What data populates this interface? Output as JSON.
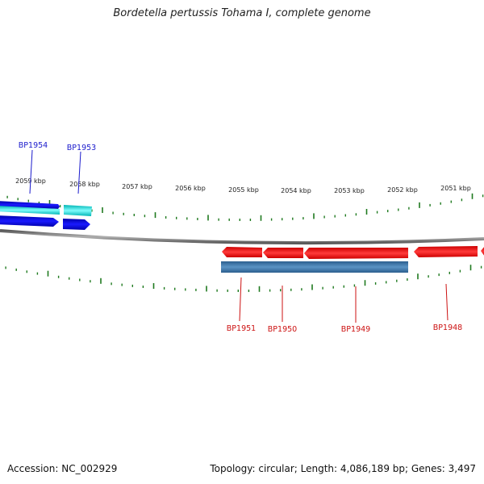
{
  "title": "Bordetella pertussis Tohama I, complete genome",
  "footer": {
    "accession": "Accession: NC_002929",
    "summary": "Topology: circular; Length: 4,086,189 bp; Genes: 3,497"
  },
  "map": {
    "ticks": [
      {
        "label": "2059 kbp"
      },
      {
        "label": "2058 kbp"
      },
      {
        "label": "2057 kbp"
      },
      {
        "label": "2056 kbp"
      },
      {
        "label": "2055 kbp"
      },
      {
        "label": "2054 kbp"
      },
      {
        "label": "2053 kbp"
      },
      {
        "label": "2052 kbp"
      },
      {
        "label": "2051 kbp"
      }
    ],
    "genes_forward": [
      {
        "label": "BP1954"
      },
      {
        "label": "BP1953"
      }
    ],
    "genes_reverse": [
      {
        "label": "BP1951"
      },
      {
        "label": "BP1950"
      },
      {
        "label": "BP1949"
      },
      {
        "label": "BP1948"
      }
    ],
    "colors": {
      "forward_cds": "#0000ee",
      "forward_cyan": "#00e5e5",
      "reverse_cds": "#ff0000",
      "steelblue": "#3d79ad",
      "backbone": "#808080",
      "ticks": "#1f7a1f",
      "forward_label": "#1a1acc",
      "reverse_label": "#cc1111"
    }
  }
}
